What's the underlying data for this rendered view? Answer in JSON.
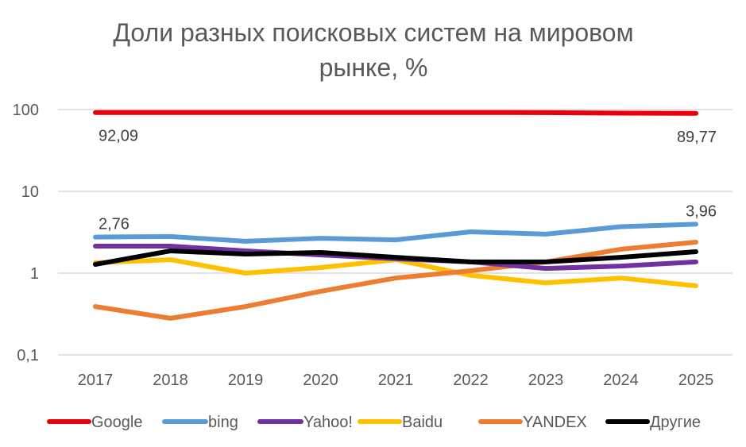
{
  "chart_data": {
    "type": "line",
    "title_lines": [
      "Доли разных поисковых систем на мировом",
      "рынке, %"
    ],
    "xlabel": "",
    "ylabel": "",
    "y_scale": "log",
    "ylim": [
      0.1,
      100
    ],
    "y_ticks": [
      {
        "value": 100,
        "label": "100"
      },
      {
        "value": 10,
        "label": "10"
      },
      {
        "value": 1,
        "label": "1"
      },
      {
        "value": 0.1,
        "label": "0,1"
      }
    ],
    "grid": true,
    "legend_position": "bottom",
    "categories": [
      "2017",
      "2018",
      "2019",
      "2020",
      "2021",
      "2022",
      "2023",
      "2024",
      "2025"
    ],
    "series": [
      {
        "name": "Google",
        "color": "#e8000b",
        "values": [
          92.09,
          91.9,
          91.8,
          91.9,
          91.9,
          92.0,
          91.6,
          90.4,
          89.77
        ]
      },
      {
        "name": "bing",
        "color": "#5b9bd5",
        "values": [
          2.76,
          2.8,
          2.45,
          2.67,
          2.55,
          3.2,
          3.0,
          3.7,
          3.96
        ]
      },
      {
        "name": "Yahoo!",
        "color": "#7030a0",
        "values": [
          2.14,
          2.14,
          1.87,
          1.67,
          1.5,
          1.37,
          1.14,
          1.22,
          1.37
        ]
      },
      {
        "name": "Baidu",
        "color": "#ffc000",
        "values": [
          1.34,
          1.46,
          1.0,
          1.17,
          1.46,
          0.94,
          0.76,
          0.87,
          0.7
        ]
      },
      {
        "name": "YANDEX",
        "color": "#ed7d31",
        "values": [
          0.39,
          0.28,
          0.39,
          0.6,
          0.87,
          1.07,
          1.37,
          1.96,
          2.39
        ]
      },
      {
        "name": "Другие",
        "color": "#000000",
        "values": [
          1.28,
          1.87,
          1.71,
          1.79,
          1.56,
          1.37,
          1.37,
          1.56,
          1.83
        ]
      }
    ],
    "annotations": [
      {
        "series": "Google",
        "category": "2017",
        "text": "92,09",
        "placement": "below"
      },
      {
        "series": "Google",
        "category": "2025",
        "text": "89,77",
        "placement": "below"
      },
      {
        "series": "bing",
        "category": "2017",
        "text": "2,76",
        "placement": "above"
      },
      {
        "series": "bing",
        "category": "2025",
        "text": "3,96",
        "placement": "above"
      }
    ],
    "gridline_color": "#d9d9d9"
  }
}
